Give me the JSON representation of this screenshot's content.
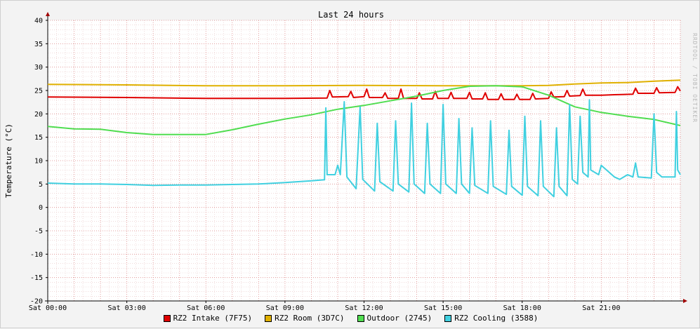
{
  "chart_data": {
    "type": "line",
    "title": "Last 24 hours",
    "ylabel": "Temperature (°C)",
    "watermark": "RRDTOOL / TOBI OETIKER",
    "ylim": [
      -20,
      40
    ],
    "yticks": [
      40,
      35,
      30,
      25,
      20,
      15,
      10,
      5,
      0,
      -5,
      -10,
      -15,
      -20
    ],
    "xlim": [
      0,
      24
    ],
    "xticks": [
      {
        "hour": 0,
        "label": "Sat 00:00"
      },
      {
        "hour": 3,
        "label": "Sat 03:00"
      },
      {
        "hour": 6,
        "label": "Sat 06:00"
      },
      {
        "hour": 9,
        "label": "Sat 09:00"
      },
      {
        "hour": 12,
        "label": "Sat 12:00"
      },
      {
        "hour": 15,
        "label": "Sat 15:00"
      },
      {
        "hour": 18,
        "label": "Sat 18:00"
      },
      {
        "hour": 21,
        "label": "Sat 21:00"
      }
    ],
    "series": [
      {
        "name": "RZ2 Intake (7F75)",
        "color": "#e00000",
        "points": [
          [
            0,
            23.6
          ],
          [
            3,
            23.5
          ],
          [
            6,
            23.3
          ],
          [
            9,
            23.3
          ],
          [
            10.6,
            23.4
          ],
          [
            10.7,
            25.0
          ],
          [
            10.8,
            23.6
          ],
          [
            11.4,
            23.7
          ],
          [
            11.5,
            24.8
          ],
          [
            11.6,
            23.5
          ],
          [
            12.0,
            23.7
          ],
          [
            12.1,
            25.3
          ],
          [
            12.2,
            23.5
          ],
          [
            12.7,
            23.5
          ],
          [
            12.8,
            24.5
          ],
          [
            12.9,
            23.3
          ],
          [
            13.3,
            23.3
          ],
          [
            13.4,
            25.3
          ],
          [
            13.5,
            23.3
          ],
          [
            14.0,
            23.3
          ],
          [
            14.1,
            24.5
          ],
          [
            14.2,
            23.2
          ],
          [
            14.6,
            23.2
          ],
          [
            14.7,
            24.8
          ],
          [
            14.8,
            23.3
          ],
          [
            15.2,
            23.3
          ],
          [
            15.3,
            24.6
          ],
          [
            15.4,
            23.3
          ],
          [
            15.9,
            23.3
          ],
          [
            16.0,
            24.6
          ],
          [
            16.1,
            23.2
          ],
          [
            16.5,
            23.2
          ],
          [
            16.6,
            24.5
          ],
          [
            16.7,
            23.1
          ],
          [
            17.1,
            23.1
          ],
          [
            17.2,
            24.3
          ],
          [
            17.3,
            23.1
          ],
          [
            17.7,
            23.1
          ],
          [
            17.8,
            24.2
          ],
          [
            17.9,
            23.1
          ],
          [
            18.3,
            23.1
          ],
          [
            18.4,
            24.4
          ],
          [
            18.5,
            23.2
          ],
          [
            19.0,
            23.3
          ],
          [
            19.1,
            24.7
          ],
          [
            19.2,
            23.6
          ],
          [
            19.6,
            23.7
          ],
          [
            19.7,
            25.0
          ],
          [
            19.8,
            23.8
          ],
          [
            20.2,
            23.9
          ],
          [
            20.3,
            25.3
          ],
          [
            20.4,
            24.0
          ],
          [
            21.0,
            24.0
          ],
          [
            21.5,
            24.1
          ],
          [
            22.2,
            24.2
          ],
          [
            22.3,
            25.5
          ],
          [
            22.4,
            24.4
          ],
          [
            23.0,
            24.4
          ],
          [
            23.1,
            25.6
          ],
          [
            23.2,
            24.5
          ],
          [
            23.8,
            24.6
          ],
          [
            23.9,
            25.8
          ],
          [
            24,
            24.9
          ]
        ]
      },
      {
        "name": "RZ2 Room (3D7C)",
        "color": "#e0b000",
        "points": [
          [
            0,
            26.3
          ],
          [
            3,
            26.2
          ],
          [
            6,
            26.0
          ],
          [
            9,
            26.0
          ],
          [
            12,
            26.1
          ],
          [
            15,
            26.0
          ],
          [
            18,
            26.0
          ],
          [
            19,
            26.1
          ],
          [
            20,
            26.4
          ],
          [
            21,
            26.6
          ],
          [
            22,
            26.7
          ],
          [
            23,
            27.0
          ],
          [
            24,
            27.2
          ]
        ]
      },
      {
        "name": "Outdoor (2745)",
        "color": "#50dd50",
        "points": [
          [
            0,
            17.3
          ],
          [
            1,
            16.8
          ],
          [
            2,
            16.7
          ],
          [
            3,
            16.0
          ],
          [
            4,
            15.6
          ],
          [
            5,
            15.6
          ],
          [
            6,
            15.6
          ],
          [
            7,
            16.6
          ],
          [
            8,
            17.8
          ],
          [
            9,
            18.9
          ],
          [
            10,
            19.8
          ],
          [
            11,
            21.0
          ],
          [
            12,
            21.8
          ],
          [
            13,
            22.8
          ],
          [
            14,
            23.8
          ],
          [
            15,
            25.0
          ],
          [
            16,
            25.9
          ],
          [
            17,
            26.0
          ],
          [
            18,
            25.8
          ],
          [
            19,
            24.0
          ],
          [
            20,
            21.5
          ],
          [
            21,
            20.3
          ],
          [
            22,
            19.5
          ],
          [
            23,
            18.8
          ],
          [
            24,
            17.5
          ]
        ]
      },
      {
        "name": "RZ2 Cooling (3588)",
        "color": "#40d0e0",
        "points": [
          [
            0,
            5.2
          ],
          [
            1,
            5.0
          ],
          [
            2,
            5.0
          ],
          [
            3,
            4.9
          ],
          [
            4,
            4.7
          ],
          [
            5,
            4.8
          ],
          [
            6,
            4.8
          ],
          [
            7,
            4.9
          ],
          [
            8,
            5.0
          ],
          [
            9,
            5.3
          ],
          [
            10,
            5.7
          ],
          [
            10.5,
            5.9
          ],
          [
            10.55,
            21.3
          ],
          [
            10.6,
            7.0
          ],
          [
            10.9,
            7.0
          ],
          [
            11.0,
            9.0
          ],
          [
            11.1,
            7.0
          ],
          [
            11.25,
            22.6
          ],
          [
            11.35,
            6.5
          ],
          [
            11.7,
            4.0
          ],
          [
            11.85,
            21.5
          ],
          [
            11.95,
            6.0
          ],
          [
            12.4,
            3.5
          ],
          [
            12.5,
            18.0
          ],
          [
            12.6,
            5.5
          ],
          [
            13.1,
            3.5
          ],
          [
            13.2,
            18.5
          ],
          [
            13.3,
            5.0
          ],
          [
            13.7,
            3.3
          ],
          [
            13.8,
            22.3
          ],
          [
            13.9,
            5.0
          ],
          [
            14.3,
            3.0
          ],
          [
            14.4,
            18.0
          ],
          [
            14.5,
            5.0
          ],
          [
            14.9,
            3.0
          ],
          [
            15.0,
            22.0
          ],
          [
            15.1,
            5.0
          ],
          [
            15.5,
            3.0
          ],
          [
            15.6,
            19.0
          ],
          [
            15.7,
            5.0
          ],
          [
            16.0,
            3.0
          ],
          [
            16.1,
            17.0
          ],
          [
            16.2,
            4.7
          ],
          [
            16.7,
            3.0
          ],
          [
            16.8,
            18.5
          ],
          [
            16.9,
            4.5
          ],
          [
            17.4,
            2.8
          ],
          [
            17.5,
            16.5
          ],
          [
            17.6,
            4.5
          ],
          [
            18.0,
            2.6
          ],
          [
            18.1,
            19.5
          ],
          [
            18.2,
            4.5
          ],
          [
            18.6,
            2.5
          ],
          [
            18.7,
            18.5
          ],
          [
            18.8,
            4.5
          ],
          [
            19.2,
            2.3
          ],
          [
            19.3,
            17.0
          ],
          [
            19.4,
            4.5
          ],
          [
            19.7,
            2.5
          ],
          [
            19.8,
            22.0
          ],
          [
            19.9,
            6.0
          ],
          [
            20.1,
            5.0
          ],
          [
            20.2,
            19.5
          ],
          [
            20.3,
            7.5
          ],
          [
            20.5,
            6.5
          ],
          [
            20.55,
            23.0
          ],
          [
            20.6,
            8.0
          ],
          [
            20.9,
            7.0
          ],
          [
            21.0,
            9.0
          ],
          [
            21.5,
            6.5
          ],
          [
            21.7,
            6.0
          ],
          [
            22.0,
            7.0
          ],
          [
            22.2,
            6.5
          ],
          [
            22.3,
            9.5
          ],
          [
            22.4,
            6.5
          ],
          [
            22.9,
            6.3
          ],
          [
            23.0,
            20.0
          ],
          [
            23.1,
            7.5
          ],
          [
            23.3,
            6.5
          ],
          [
            23.8,
            6.5
          ],
          [
            23.85,
            20.5
          ],
          [
            23.9,
            8.0
          ],
          [
            24,
            7.0
          ]
        ]
      }
    ]
  }
}
